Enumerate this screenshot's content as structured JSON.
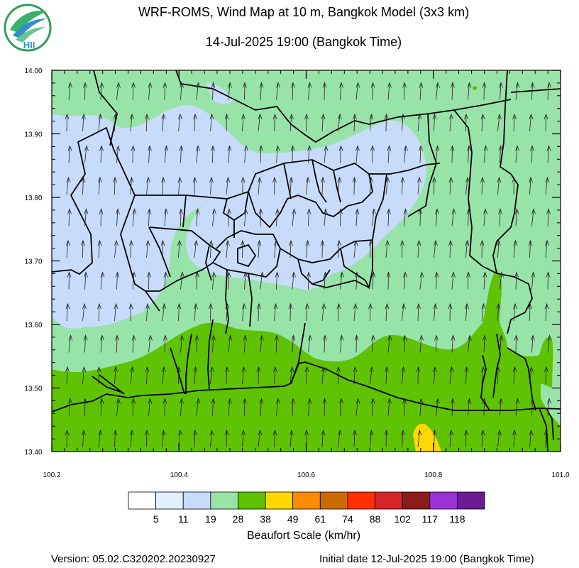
{
  "header": {
    "title": "WRF-ROMS, Wind Map at 10 m, Bangkok Model (3x3 km)",
    "subtitle": "14-Jul-2025 19:00 (Bangkok Time)",
    "logo_text": "HII"
  },
  "map": {
    "lon_range": [
      100.2,
      101.0
    ],
    "lat_range": [
      13.4,
      14.0
    ],
    "x_tick_labels": [
      "100.2",
      "100.4",
      "100.6",
      "100.8",
      "101.0"
    ],
    "y_tick_labels": [
      "14.00",
      "13.90",
      "13.80",
      "13.70",
      "13.60",
      "13.50",
      "13.40"
    ],
    "wind_direction": "toward north (southerly wind)"
  },
  "colorbar": {
    "colors": [
      "#ffffff",
      "#e3eefe",
      "#c6dcfa",
      "#98e3a8",
      "#5fc202",
      "#fed800",
      "#fe8b01",
      "#cc6a04",
      "#ff2f00",
      "#d82429",
      "#8c1b1b",
      "#9a31d5",
      "#6a1b95"
    ],
    "labels": [
      "5",
      "11",
      "19",
      "28",
      "38",
      "49",
      "61",
      "74",
      "88",
      "102",
      "117",
      "118"
    ],
    "title": "Beaufort Scale (km/hr)"
  },
  "footer": {
    "version": "Version: 05.02.C320202.20230927",
    "initial_date": "Initial date 12-Jul-2025 19:00 (Bangkok Time)"
  }
}
